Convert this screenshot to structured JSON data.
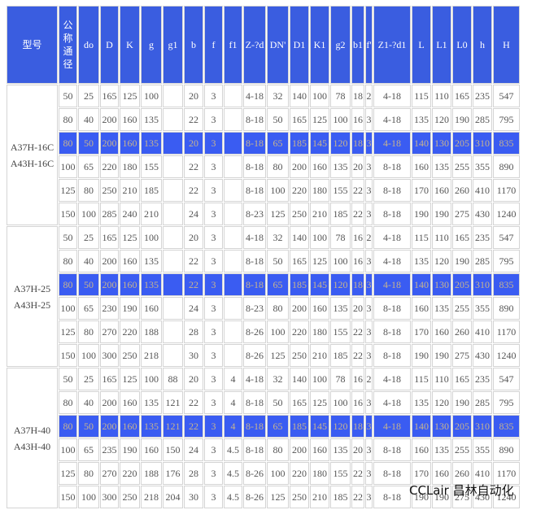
{
  "table": {
    "headers": [
      "型号",
      "公称通径",
      "do",
      "D",
      "K",
      "g",
      "g1",
      "b",
      "f",
      "f1",
      "Z-?d",
      "DN'",
      "D1",
      "K1",
      "g2",
      "b1",
      "f'",
      "Z1-?d1",
      "L",
      "L1",
      "L0",
      "h",
      "H"
    ],
    "groups": [
      {
        "model": [
          "A37H-16C",
          "A43H-16C"
        ],
        "rows": [
          [
            50,
            25,
            165,
            125,
            100,
            null,
            20,
            3,
            null,
            "4-18",
            32,
            140,
            100,
            78,
            18,
            2,
            "4-18",
            115,
            110,
            165,
            235,
            547
          ],
          [
            80,
            40,
            200,
            160,
            135,
            null,
            22,
            3,
            null,
            "8-18",
            50,
            165,
            125,
            100,
            16,
            3,
            "4-18",
            135,
            120,
            190,
            285,
            795
          ],
          [
            80,
            50,
            200,
            160,
            135,
            null,
            20,
            3,
            null,
            "8-18",
            65,
            185,
            145,
            120,
            18,
            3,
            "4-18",
            140,
            130,
            205,
            310,
            835
          ],
          [
            100,
            65,
            220,
            180,
            155,
            null,
            22,
            3,
            null,
            "8-18",
            80,
            200,
            160,
            135,
            20,
            3,
            "8-18",
            160,
            135,
            255,
            355,
            890
          ],
          [
            125,
            80,
            250,
            210,
            185,
            null,
            22,
            3,
            null,
            "8-18",
            100,
            220,
            180,
            155,
            22,
            3,
            "8-18",
            170,
            160,
            260,
            410,
            1170
          ],
          [
            150,
            100,
            285,
            240,
            210,
            null,
            24,
            3,
            null,
            "8-23",
            125,
            250,
            210,
            185,
            22,
            3,
            "8-18",
            190,
            190,
            275,
            430,
            1240
          ]
        ]
      },
      {
        "model": [
          "A37H-25",
          "A43H-25"
        ],
        "rows": [
          [
            50,
            25,
            165,
            125,
            100,
            null,
            20,
            3,
            null,
            "4-18",
            32,
            140,
            100,
            78,
            16,
            2,
            "4-18",
            115,
            110,
            165,
            235,
            547
          ],
          [
            80,
            40,
            200,
            160,
            135,
            null,
            22,
            3,
            null,
            "8-18",
            50,
            165,
            125,
            100,
            16,
            3,
            "4-18",
            135,
            120,
            190,
            285,
            795
          ],
          [
            80,
            50,
            200,
            160,
            135,
            null,
            22,
            3,
            null,
            "8-18",
            65,
            185,
            145,
            120,
            18,
            3,
            "4-18",
            140,
            130,
            205,
            310,
            835
          ],
          [
            100,
            65,
            230,
            190,
            160,
            null,
            24,
            3,
            null,
            "8-23",
            80,
            200,
            160,
            135,
            20,
            3,
            "8-18",
            160,
            135,
            255,
            355,
            890
          ],
          [
            125,
            80,
            270,
            220,
            188,
            null,
            28,
            3,
            null,
            "8-26",
            100,
            220,
            180,
            155,
            22,
            3,
            "8-18",
            170,
            160,
            260,
            410,
            1170
          ],
          [
            150,
            100,
            300,
            250,
            218,
            null,
            30,
            3,
            null,
            "8-26",
            125,
            250,
            210,
            185,
            22,
            3,
            "8-18",
            190,
            190,
            275,
            430,
            1240
          ]
        ]
      },
      {
        "model": [
          "A37H-40",
          "A43H-40"
        ],
        "rows": [
          [
            50,
            25,
            165,
            125,
            100,
            88,
            20,
            3,
            4,
            "4-18",
            32,
            140,
            100,
            78,
            16,
            2,
            "4-18",
            115,
            110,
            165,
            235,
            547
          ],
          [
            80,
            40,
            200,
            160,
            135,
            121,
            22,
            3,
            4,
            "8-18",
            50,
            165,
            125,
            100,
            16,
            3,
            "4-18",
            135,
            120,
            190,
            285,
            795
          ],
          [
            80,
            50,
            200,
            160,
            135,
            121,
            22,
            3,
            4,
            "8-18",
            65,
            185,
            145,
            120,
            18,
            3,
            "4-18",
            140,
            130,
            205,
            310,
            835
          ],
          [
            100,
            65,
            235,
            190,
            160,
            150,
            24,
            3,
            4.5,
            "8-18",
            80,
            200,
            160,
            135,
            20,
            3,
            "8-18",
            160,
            135,
            255,
            355,
            890
          ],
          [
            125,
            80,
            270,
            220,
            188,
            176,
            28,
            3,
            4.5,
            "8-26",
            100,
            220,
            180,
            155,
            22,
            3,
            "8-18",
            170,
            160,
            260,
            410,
            1170
          ],
          [
            150,
            100,
            300,
            250,
            218,
            204,
            30,
            3,
            4.5,
            "8-26",
            125,
            250,
            210,
            185,
            22,
            3,
            "8-18",
            190,
            190,
            275,
            430,
            1240
          ]
        ]
      }
    ]
  },
  "watermark": "CCLair 昌林自动化"
}
